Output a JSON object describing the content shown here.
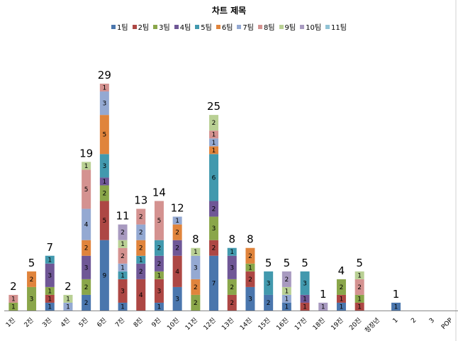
{
  "chart_data": {
    "type": "bar",
    "stacked": true,
    "title": "차트 제목",
    "xlabel": "",
    "ylabel": "",
    "ylim": [
      0,
      30
    ],
    "grid": false,
    "legend_position": "top",
    "categories": [
      "1진",
      "2진",
      "3진",
      "4진",
      "5진",
      "6진",
      "7진",
      "8진",
      "9진",
      "10진",
      "11진",
      "12진",
      "13진",
      "14진",
      "15진",
      "16진",
      "17진",
      "18진",
      "19진",
      "20진",
      "청장년",
      "1",
      "2",
      "3",
      "POP"
    ],
    "totals": [
      2,
      5,
      7,
      2,
      19,
      29,
      11,
      13,
      14,
      12,
      8,
      25,
      8,
      8,
      5,
      5,
      5,
      1,
      4,
      5,
      null,
      1,
      null,
      null,
      null
    ],
    "series": [
      {
        "name": "1팀",
        "color": "#4a76ad",
        "values": [
          0,
          0,
          1,
          0,
          2,
          9,
          1,
          0,
          1,
          3,
          0,
          7,
          0,
          3,
          2,
          1,
          0,
          0,
          1,
          0,
          0,
          1,
          0,
          0,
          0
        ]
      },
      {
        "name": "2팀",
        "color": "#ad4744",
        "values": [
          0,
          0,
          1,
          0,
          0,
          5,
          3,
          4,
          3,
          4,
          0,
          2,
          2,
          2,
          0,
          0,
          1,
          0,
          1,
          1,
          0,
          0,
          0,
          0,
          0
        ]
      },
      {
        "name": "3팀",
        "color": "#8aa64a",
        "values": [
          1,
          3,
          1,
          0,
          2,
          2,
          0,
          0,
          1,
          0,
          2,
          3,
          2,
          1,
          0,
          0,
          0,
          0,
          2,
          1,
          0,
          0,
          0,
          0,
          0
        ]
      },
      {
        "name": "4팀",
        "color": "#6f5796",
        "values": [
          0,
          0,
          3,
          0,
          3,
          1,
          0,
          2,
          2,
          2,
          0,
          2,
          3,
          0,
          0,
          0,
          1,
          0,
          0,
          0,
          0,
          0,
          0,
          0,
          0
        ]
      },
      {
        "name": "5팀",
        "color": "#4299ae",
        "values": [
          0,
          0,
          1,
          0,
          0,
          3,
          1,
          1,
          2,
          0,
          0,
          6,
          1,
          0,
          3,
          0,
          3,
          0,
          0,
          0,
          0,
          0,
          0,
          0,
          0
        ]
      },
      {
        "name": "6팀",
        "color": "#e0843c",
        "values": [
          0,
          2,
          0,
          0,
          2,
          5,
          0,
          2,
          0,
          2,
          2,
          1,
          0,
          2,
          0,
          0,
          0,
          0,
          0,
          0,
          0,
          0,
          0,
          0,
          0
        ]
      },
      {
        "name": "7팀",
        "color": "#94a9d2",
        "values": [
          0,
          0,
          0,
          1,
          4,
          3,
          1,
          2,
          0,
          1,
          3,
          1,
          0,
          0,
          0,
          1,
          0,
          0,
          0,
          0,
          0,
          0,
          0,
          0,
          0
        ]
      },
      {
        "name": "8팀",
        "color": "#d49290",
        "values": [
          1,
          0,
          0,
          0,
          5,
          1,
          2,
          2,
          5,
          0,
          0,
          1,
          0,
          0,
          0,
          0,
          0,
          0,
          0,
          2,
          0,
          0,
          0,
          0,
          0
        ]
      },
      {
        "name": "9팀",
        "color": "#b9d094",
        "values": [
          0,
          0,
          0,
          1,
          1,
          0,
          1,
          0,
          0,
          0,
          1,
          2,
          0,
          0,
          0,
          1,
          0,
          0,
          0,
          1,
          0,
          0,
          0,
          0,
          0
        ]
      },
      {
        "name": "10팀",
        "color": "#a89ac0",
        "values": [
          0,
          0,
          0,
          0,
          0,
          0,
          2,
          0,
          0,
          0,
          0,
          0,
          0,
          0,
          0,
          2,
          0,
          1,
          0,
          0,
          0,
          0,
          0,
          0,
          0
        ]
      },
      {
        "name": "11팀",
        "color": "#91c3d5",
        "values": [
          0,
          0,
          0,
          0,
          0,
          0,
          0,
          0,
          0,
          0,
          0,
          0,
          0,
          0,
          0,
          0,
          0,
          0,
          0,
          0,
          0,
          0,
          0,
          0,
          0
        ]
      }
    ]
  }
}
